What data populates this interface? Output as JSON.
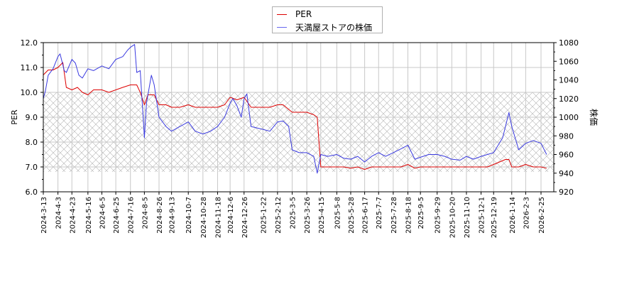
{
  "legend": {
    "items": [
      {
        "label": "PER",
        "color": "#dd0000"
      },
      {
        "label": "天満屋ストアの株価",
        "color": "#3333dd"
      }
    ]
  },
  "axes": {
    "left_label": "PER",
    "right_label": "株価",
    "left_ticks": [
      "12.0",
      "11.0",
      "10.0",
      "9.0",
      "8.0",
      "7.0",
      "6.0"
    ],
    "right_ticks": [
      "1080",
      "1060",
      "1040",
      "1020",
      "1000",
      "980",
      "960",
      "940",
      "920"
    ]
  },
  "chart_data": {
    "type": "line",
    "title": "",
    "xlabel": "",
    "ylabel": "PER",
    "ylabel_right": "株価",
    "ylim": [
      6.0,
      12.0
    ],
    "ylim_right": [
      920,
      1080
    ],
    "grid": true,
    "legend_position": "top-center",
    "shaded_band": {
      "axis": "left",
      "from": 6.8,
      "to": 10.0,
      "pattern": "crosshatch"
    },
    "x_ticks": [
      "2024-3-13",
      "2024-4-3",
      "2024-4-23",
      "2024-5-16",
      "2024-6-5",
      "2024-6-25",
      "2024-7-16",
      "2024-8-5",
      "2024-8-26",
      "2024-9-13",
      "2024-10-7",
      "2024-10-28",
      "2024-11-18",
      "2024-12-6",
      "2024-12-26",
      "2025-1-22",
      "2025-2-12",
      "2025-3-5",
      "2025-3-26",
      "2025-4-15",
      "2025-5-8",
      "2025-5-28",
      "2025-6-17",
      "2025-7-7",
      "2025-7-28",
      "2025-8-18",
      "2025-9-5",
      "2025-9-29",
      "2025-10-20",
      "2025-11-10",
      "2025-12-1",
      "2025-12-19",
      "2026-1-14",
      "2026-2-3",
      "2026-2-25"
    ],
    "series": [
      {
        "name": "PER",
        "axis": "left",
        "color": "#dd0000",
        "points": [
          [
            "2024-3-13",
            10.7
          ],
          [
            "2024-3-20",
            10.9
          ],
          [
            "2024-3-27",
            10.9
          ],
          [
            "2024-4-3",
            11.0
          ],
          [
            "2024-4-10",
            11.2
          ],
          [
            "2024-4-15",
            10.2
          ],
          [
            "2024-4-23",
            10.1
          ],
          [
            "2024-5-1",
            10.2
          ],
          [
            "2024-5-8",
            10.0
          ],
          [
            "2024-5-16",
            9.9
          ],
          [
            "2024-5-24",
            10.1
          ],
          [
            "2024-6-5",
            10.1
          ],
          [
            "2024-6-15",
            10.0
          ],
          [
            "2024-6-25",
            10.1
          ],
          [
            "2024-7-5",
            10.2
          ],
          [
            "2024-7-16",
            10.3
          ],
          [
            "2024-7-25",
            10.3
          ],
          [
            "2024-7-30",
            10.0
          ],
          [
            "2024-8-5",
            9.5
          ],
          [
            "2024-8-10",
            9.9
          ],
          [
            "2024-8-19",
            9.9
          ],
          [
            "2024-8-26",
            9.5
          ],
          [
            "2024-9-5",
            9.5
          ],
          [
            "2024-9-13",
            9.4
          ],
          [
            "2024-9-25",
            9.4
          ],
          [
            "2024-10-7",
            9.5
          ],
          [
            "2024-10-17",
            9.4
          ],
          [
            "2024-10-28",
            9.4
          ],
          [
            "2024-11-8",
            9.4
          ],
          [
            "2024-11-18",
            9.4
          ],
          [
            "2024-11-28",
            9.5
          ],
          [
            "2024-12-6",
            9.8
          ],
          [
            "2024-12-16",
            9.7
          ],
          [
            "2024-12-26",
            9.8
          ],
          [
            "2025-1-5",
            9.4
          ],
          [
            "2025-1-22",
            9.4
          ],
          [
            "2025-2-1",
            9.4
          ],
          [
            "2025-2-12",
            9.5
          ],
          [
            "2025-2-20",
            9.5
          ],
          [
            "2025-3-5",
            9.2
          ],
          [
            "2025-3-15",
            9.2
          ],
          [
            "2025-3-26",
            9.2
          ],
          [
            "2025-4-5",
            9.1
          ],
          [
            "2025-4-10",
            9.0
          ],
          [
            "2025-4-15",
            7.0
          ],
          [
            "2025-4-25",
            7.0
          ],
          [
            "2025-5-8",
            7.0
          ],
          [
            "2025-5-18",
            7.0
          ],
          [
            "2025-5-28",
            6.95
          ],
          [
            "2025-6-7",
            7.0
          ],
          [
            "2025-6-17",
            6.9
          ],
          [
            "2025-6-27",
            7.0
          ],
          [
            "2025-7-7",
            7.0
          ],
          [
            "2025-7-17",
            7.0
          ],
          [
            "2025-7-28",
            7.0
          ],
          [
            "2025-8-8",
            7.0
          ],
          [
            "2025-8-18",
            7.1
          ],
          [
            "2025-8-28",
            6.95
          ],
          [
            "2025-9-5",
            7.0
          ],
          [
            "2025-9-17",
            7.0
          ],
          [
            "2025-9-29",
            7.0
          ],
          [
            "2025-10-10",
            7.0
          ],
          [
            "2025-10-20",
            7.0
          ],
          [
            "2025-11-1",
            7.0
          ],
          [
            "2025-11-10",
            7.0
          ],
          [
            "2025-11-20",
            7.0
          ],
          [
            "2025-12-1",
            7.0
          ],
          [
            "2025-12-10",
            7.0
          ],
          [
            "2025-12-19",
            7.1
          ],
          [
            "2026-1-5",
            7.3
          ],
          [
            "2026-1-10",
            7.3
          ],
          [
            "2026-1-14",
            7.0
          ],
          [
            "2026-1-24",
            7.0
          ],
          [
            "2026-2-3",
            7.1
          ],
          [
            "2026-2-14",
            7.0
          ],
          [
            "2026-2-25",
            7.0
          ],
          [
            "2026-3-5",
            6.95
          ]
        ]
      },
      {
        "name": "天満屋ストアの株価",
        "axis": "right",
        "color": "#3333dd",
        "points": [
          [
            "2024-3-13",
            1020
          ],
          [
            "2024-3-16",
            1028
          ],
          [
            "2024-3-20",
            1045
          ],
          [
            "2024-3-27",
            1052
          ],
          [
            "2024-4-3",
            1065
          ],
          [
            "2024-4-6",
            1068
          ],
          [
            "2024-4-12",
            1050
          ],
          [
            "2024-4-15",
            1048
          ],
          [
            "2024-4-23",
            1062
          ],
          [
            "2024-4-28",
            1058
          ],
          [
            "2024-5-3",
            1045
          ],
          [
            "2024-5-8",
            1042
          ],
          [
            "2024-5-16",
            1052
          ],
          [
            "2024-5-24",
            1050
          ],
          [
            "2024-6-5",
            1055
          ],
          [
            "2024-6-15",
            1052
          ],
          [
            "2024-6-25",
            1062
          ],
          [
            "2024-7-5",
            1065
          ],
          [
            "2024-7-12",
            1072
          ],
          [
            "2024-7-16",
            1075
          ],
          [
            "2024-7-22",
            1078
          ],
          [
            "2024-7-25",
            1048
          ],
          [
            "2024-7-30",
            1050
          ],
          [
            "2024-8-5",
            978
          ],
          [
            "2024-8-8",
            1015
          ],
          [
            "2024-8-15",
            1045
          ],
          [
            "2024-8-19",
            1035
          ],
          [
            "2024-8-26",
            1000
          ],
          [
            "2024-9-5",
            990
          ],
          [
            "2024-9-13",
            985
          ],
          [
            "2024-9-25",
            990
          ],
          [
            "2024-10-7",
            995
          ],
          [
            "2024-10-17",
            985
          ],
          [
            "2024-10-28",
            982
          ],
          [
            "2024-11-8",
            985
          ],
          [
            "2024-11-18",
            990
          ],
          [
            "2024-11-28",
            1000
          ],
          [
            "2024-12-6",
            1015
          ],
          [
            "2024-12-10",
            1020
          ],
          [
            "2024-12-16",
            1012
          ],
          [
            "2024-12-22",
            1000
          ],
          [
            "2024-12-26",
            1020
          ],
          [
            "2024-12-30",
            1025
          ],
          [
            "2025-1-5",
            990
          ],
          [
            "2025-1-22",
            987
          ],
          [
            "2025-2-1",
            985
          ],
          [
            "2025-2-12",
            995
          ],
          [
            "2025-2-20",
            996
          ],
          [
            "2025-2-28",
            990
          ],
          [
            "2025-3-5",
            965
          ],
          [
            "2025-3-15",
            962
          ],
          [
            "2025-3-26",
            962
          ],
          [
            "2025-4-5",
            958
          ],
          [
            "2025-4-10",
            940
          ],
          [
            "2025-4-15",
            960
          ],
          [
            "2025-4-25",
            958
          ],
          [
            "2025-5-8",
            960
          ],
          [
            "2025-5-18",
            956
          ],
          [
            "2025-5-28",
            955
          ],
          [
            "2025-6-7",
            958
          ],
          [
            "2025-6-17",
            952
          ],
          [
            "2025-6-27",
            958
          ],
          [
            "2025-7-7",
            962
          ],
          [
            "2025-7-17",
            958
          ],
          [
            "2025-7-28",
            962
          ],
          [
            "2025-8-8",
            966
          ],
          [
            "2025-8-18",
            970
          ],
          [
            "2025-8-28",
            955
          ],
          [
            "2025-9-5",
            957
          ],
          [
            "2025-9-17",
            960
          ],
          [
            "2025-9-29",
            960
          ],
          [
            "2025-10-10",
            958
          ],
          [
            "2025-10-20",
            955
          ],
          [
            "2025-11-1",
            954
          ],
          [
            "2025-11-10",
            958
          ],
          [
            "2025-11-20",
            955
          ],
          [
            "2025-12-1",
            958
          ],
          [
            "2025-12-10",
            960
          ],
          [
            "2025-12-19",
            962
          ],
          [
            "2026-1-1",
            978
          ],
          [
            "2026-1-10",
            1005
          ],
          [
            "2026-1-14",
            990
          ],
          [
            "2026-1-24",
            965
          ],
          [
            "2026-2-3",
            972
          ],
          [
            "2026-2-14",
            975
          ],
          [
            "2026-2-25",
            972
          ],
          [
            "2026-3-5",
            960
          ]
        ]
      }
    ]
  }
}
